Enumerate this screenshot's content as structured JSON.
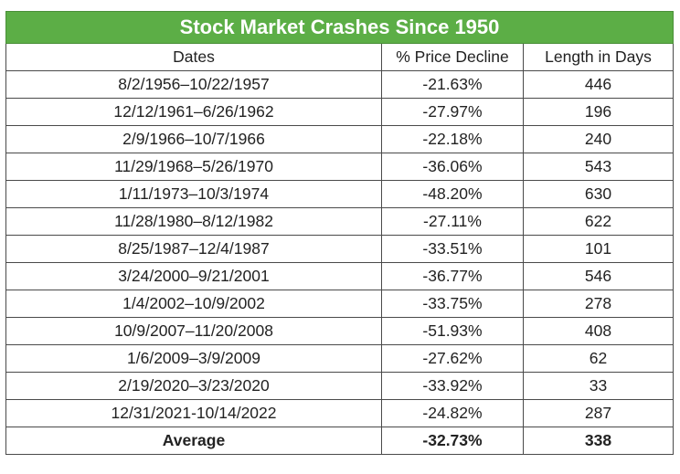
{
  "table": {
    "title": "Stock Market Crashes Since 1950",
    "headers": [
      "Dates",
      "% Price Decline",
      "Length in Days"
    ],
    "rows": [
      [
        "8/2/1956–10/22/1957",
        "-21.63%",
        "446"
      ],
      [
        "12/12/1961–6/26/1962",
        "-27.97%",
        "196"
      ],
      [
        "2/9/1966–10/7/1966",
        "-22.18%",
        "240"
      ],
      [
        "11/29/1968–5/26/1970",
        "-36.06%",
        "543"
      ],
      [
        "1/11/1973–10/3/1974",
        "-48.20%",
        "630"
      ],
      [
        "11/28/1980–8/12/1982",
        "-27.11%",
        "622"
      ],
      [
        "8/25/1987–12/4/1987",
        "-33.51%",
        "101"
      ],
      [
        "3/24/2000–9/21/2001",
        "-36.77%",
        "546"
      ],
      [
        "1/4/2002–10/9/2002",
        "-33.75%",
        "278"
      ],
      [
        "10/9/2007–11/20/2008",
        "-51.93%",
        "408"
      ],
      [
        "1/6/2009–3/9/2009",
        "-27.62%",
        "62"
      ],
      [
        "2/19/2020–3/23/2020",
        "-33.92%",
        "33"
      ],
      [
        "12/31/2021-10/14/2022",
        "-24.82%",
        "287"
      ]
    ],
    "average": [
      "Average",
      "-32.73%",
      "338"
    ],
    "colors": {
      "title_bg": "#5cae46",
      "title_text": "#ffffff",
      "border": "#4a4a4a"
    }
  }
}
